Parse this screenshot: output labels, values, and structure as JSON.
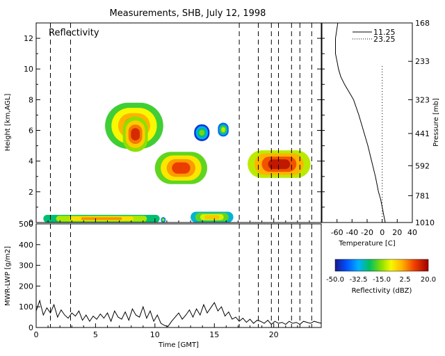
{
  "chart_data": [
    {
      "type": "heatmap",
      "title": "Measurements, SHB, July 12, 1998",
      "panel_label": "Reflectivity",
      "ylabel": "Height [km,AGL]",
      "xlim": [
        0,
        24
      ],
      "ylim": [
        0,
        13
      ],
      "x_ticks": [
        0,
        5,
        10,
        15,
        20
      ],
      "y_ticks": [
        0,
        2,
        4,
        6,
        8,
        10,
        12
      ],
      "dashed_time_markers": [
        1.2,
        2.9,
        17.1,
        18.7,
        19.8,
        20.4,
        21.5,
        22.2,
        23.2
      ],
      "echo_regions": [
        {
          "t_start": 0.6,
          "t_end": 10.4,
          "h_bottom": 0.0,
          "h_top": 0.5,
          "dbz": -5
        },
        {
          "t_start": 10.5,
          "t_end": 10.9,
          "h_bottom": 0.0,
          "h_top": 0.35,
          "dbz": -20
        },
        {
          "t_start": 13.0,
          "t_end": 16.6,
          "h_bottom": 0.0,
          "h_top": 0.7,
          "dbz": -10
        },
        {
          "t_start": 5.8,
          "t_end": 10.7,
          "h_bottom": 4.8,
          "h_top": 7.8,
          "dbz": 0
        },
        {
          "t_start": 7.3,
          "t_end": 9.4,
          "h_bottom": 4.6,
          "h_top": 6.9,
          "dbz": 5
        },
        {
          "t_start": 10.0,
          "t_end": 14.4,
          "h_bottom": 2.5,
          "h_top": 4.6,
          "dbz": 2
        },
        {
          "t_start": 13.3,
          "t_end": 14.6,
          "h_bottom": 5.3,
          "h_top": 6.4,
          "dbz": -25
        },
        {
          "t_start": 15.3,
          "t_end": 16.2,
          "h_bottom": 5.6,
          "h_top": 6.5,
          "dbz": -20
        },
        {
          "t_start": 17.8,
          "t_end": 23.1,
          "h_bottom": 2.9,
          "h_top": 4.7,
          "dbz": 8
        }
      ]
    },
    {
      "type": "line",
      "ylabel": "MWR-LWP [g/m2]",
      "xlabel": "Time [GMT]",
      "xlim": [
        0,
        24
      ],
      "ylim": [
        0,
        500
      ],
      "x_ticks": [
        0,
        5,
        10,
        15,
        20
      ],
      "y_ticks": [
        0,
        100,
        200,
        300,
        400,
        500
      ],
      "series": [
        {
          "x": [
            0,
            0.3,
            0.6,
            0.9,
            1.2,
            1.5,
            1.8,
            2.1,
            2.4,
            2.7,
            3.0,
            3.3,
            3.6,
            3.9,
            4.2,
            4.5,
            4.8,
            5.1,
            5.4,
            5.7,
            6.0,
            6.3,
            6.6,
            6.9,
            7.2,
            7.5,
            7.8,
            8.1,
            8.4,
            8.7,
            9.0,
            9.3,
            9.6,
            9.9,
            10.2,
            10.5,
            10.8,
            11.1,
            11.4,
            11.7,
            12.0,
            12.3,
            12.6,
            12.9,
            13.2,
            13.5,
            13.8,
            14.1,
            14.4,
            14.7,
            15.0,
            15.3,
            15.6,
            15.9,
            16.2,
            16.5,
            16.8,
            17.1,
            17.4,
            17.7,
            18.0,
            18.3,
            18.6,
            18.9,
            19.2,
            19.5,
            19.8,
            20.1,
            20.4,
            20.7,
            21.0,
            21.3,
            21.6,
            21.9,
            22.2,
            22.5,
            22.8,
            23.1,
            23.4,
            23.7,
            24.0
          ],
          "y": [
            80,
            130,
            60,
            95,
            70,
            110,
            50,
            85,
            60,
            45,
            70,
            55,
            80,
            35,
            60,
            30,
            55,
            40,
            65,
            45,
            70,
            30,
            80,
            50,
            40,
            75,
            35,
            90,
            60,
            50,
            100,
            45,
            80,
            30,
            60,
            20,
            10,
            5,
            30,
            50,
            70,
            40,
            60,
            85,
            50,
            90,
            60,
            110,
            70,
            95,
            120,
            80,
            100,
            55,
            75,
            40,
            50,
            30,
            45,
            25,
            40,
            20,
            35,
            30,
            20,
            35,
            15,
            30,
            20,
            25,
            15,
            30,
            20,
            25,
            15,
            30,
            25,
            20,
            30,
            25,
            20
          ]
        }
      ]
    },
    {
      "type": "line",
      "xlabel": "Temperature [C]",
      "ylabel": "Pressure [mb]",
      "xlim": [
        -80,
        40
      ],
      "x_ticks": [
        -60,
        -40,
        -20,
        0,
        20,
        40
      ],
      "y_tick_labels": [
        "168",
        "233",
        "323",
        "441",
        "592",
        "781",
        "1010"
      ],
      "y_tick_heights_km": [
        13,
        10.5,
        8,
        5.8,
        3.7,
        1.75,
        0
      ],
      "legend_position": "top-right",
      "series": [
        {
          "name": "11.25",
          "style": "solid",
          "temperature": [
            -59,
            -62,
            -62,
            -60,
            -58,
            -55,
            -50,
            -44,
            -38,
            -31,
            -25,
            -19,
            -14,
            -9,
            -5,
            -2,
            0,
            2,
            4
          ],
          "height_km": [
            13,
            12,
            11,
            10.5,
            10,
            9.5,
            9,
            8.5,
            8,
            7,
            6,
            5,
            4,
            3,
            2,
            1.5,
            1,
            0.5,
            0
          ]
        },
        {
          "name": "23.25",
          "style": "dotted",
          "temperature": [
            0,
            0
          ],
          "height_km": [
            0,
            10.2
          ]
        }
      ]
    },
    {
      "type": "colorbar",
      "label": "Reflectivity (dBZ)",
      "range": [
        -50,
        20
      ],
      "tick_labels": [
        "-50.0",
        "-32.5",
        "-15.0",
        "2.5",
        "20.0"
      ],
      "tick_values": [
        -50,
        -32.5,
        -15,
        2.5,
        20
      ]
    }
  ]
}
